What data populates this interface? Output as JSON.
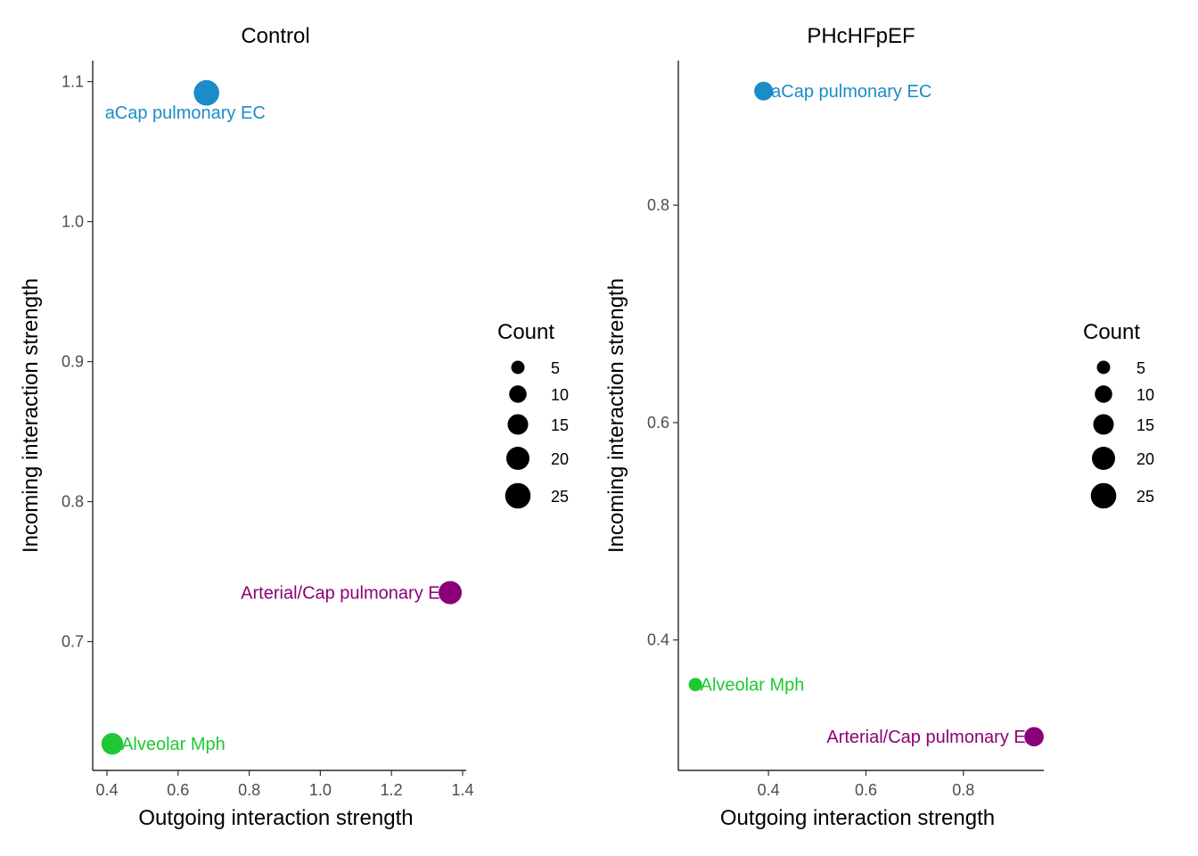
{
  "chart_data": [
    {
      "type": "scatter",
      "title": "Control",
      "xlabel": "Outgoing interaction strength",
      "ylabel": "Incoming interaction strength",
      "xlim": [
        0.36,
        1.41
      ],
      "ylim": [
        0.608,
        1.115
      ],
      "xticks": [
        0.4,
        0.6,
        0.8,
        1.0,
        1.2,
        1.4
      ],
      "xtick_labels": [
        "0.4",
        "0.6",
        "0.8",
        "1.0",
        "1.2",
        "1.4"
      ],
      "yticks": [
        0.7,
        0.8,
        0.9,
        1.0,
        1.1
      ],
      "ytick_labels": [
        "0.7",
        "0.8",
        "0.9",
        "1.0",
        "1.1"
      ],
      "points": [
        {
          "label": "aCap pulmonary EC",
          "x": 0.68,
          "y": 1.092,
          "count": 25,
          "color": "#1a8cc8",
          "label_side": "below-left"
        },
        {
          "label": "Arterial/Cap pulmonary EC",
          "x": 1.365,
          "y": 0.735,
          "count": 20,
          "color": "#8b0078",
          "label_side": "left"
        },
        {
          "label": "Alveolar Mph",
          "x": 0.415,
          "y": 0.627,
          "count": 17,
          "color": "#1ec832",
          "label_side": "right"
        }
      ],
      "legend": {
        "title": "Count",
        "placement": "right",
        "entries": [
          {
            "label": "5",
            "count": 5
          },
          {
            "label": "10",
            "count": 10
          },
          {
            "label": "15",
            "count": 15
          },
          {
            "label": "20",
            "count": 20
          },
          {
            "label": "25",
            "count": 25
          }
        ]
      }
    },
    {
      "type": "scatter",
      "title": "PHcHFpEF",
      "xlabel": "Outgoing interaction strength",
      "ylabel": "Incoming interaction strength",
      "xlim": [
        0.215,
        0.965
      ],
      "ylim": [
        0.28,
        0.933
      ],
      "xticks": [
        0.4,
        0.6,
        0.8
      ],
      "xtick_labels": [
        "0.4",
        "0.6",
        "0.8"
      ],
      "yticks": [
        0.4,
        0.6,
        0.8
      ],
      "ytick_labels": [
        "0.4",
        "0.6",
        "0.8"
      ],
      "points": [
        {
          "label": "aCap pulmonary EC",
          "x": 0.39,
          "y": 0.905,
          "count": 12,
          "color": "#1a8cc8",
          "label_side": "right"
        },
        {
          "label": "Alveolar Mph",
          "x": 0.25,
          "y": 0.359,
          "count": 5,
          "color": "#1ec832",
          "label_side": "right"
        },
        {
          "label": "Arterial/Cap pulmonary EC",
          "x": 0.945,
          "y": 0.311,
          "count": 13,
          "color": "#8b0078",
          "label_side": "left"
        }
      ],
      "legend": {
        "title": "Count",
        "placement": "right",
        "entries": [
          {
            "label": "5",
            "count": 5
          },
          {
            "label": "10",
            "count": 10
          },
          {
            "label": "15",
            "count": 15
          },
          {
            "label": "20",
            "count": 20
          },
          {
            "label": "25",
            "count": 25
          }
        ]
      }
    }
  ]
}
